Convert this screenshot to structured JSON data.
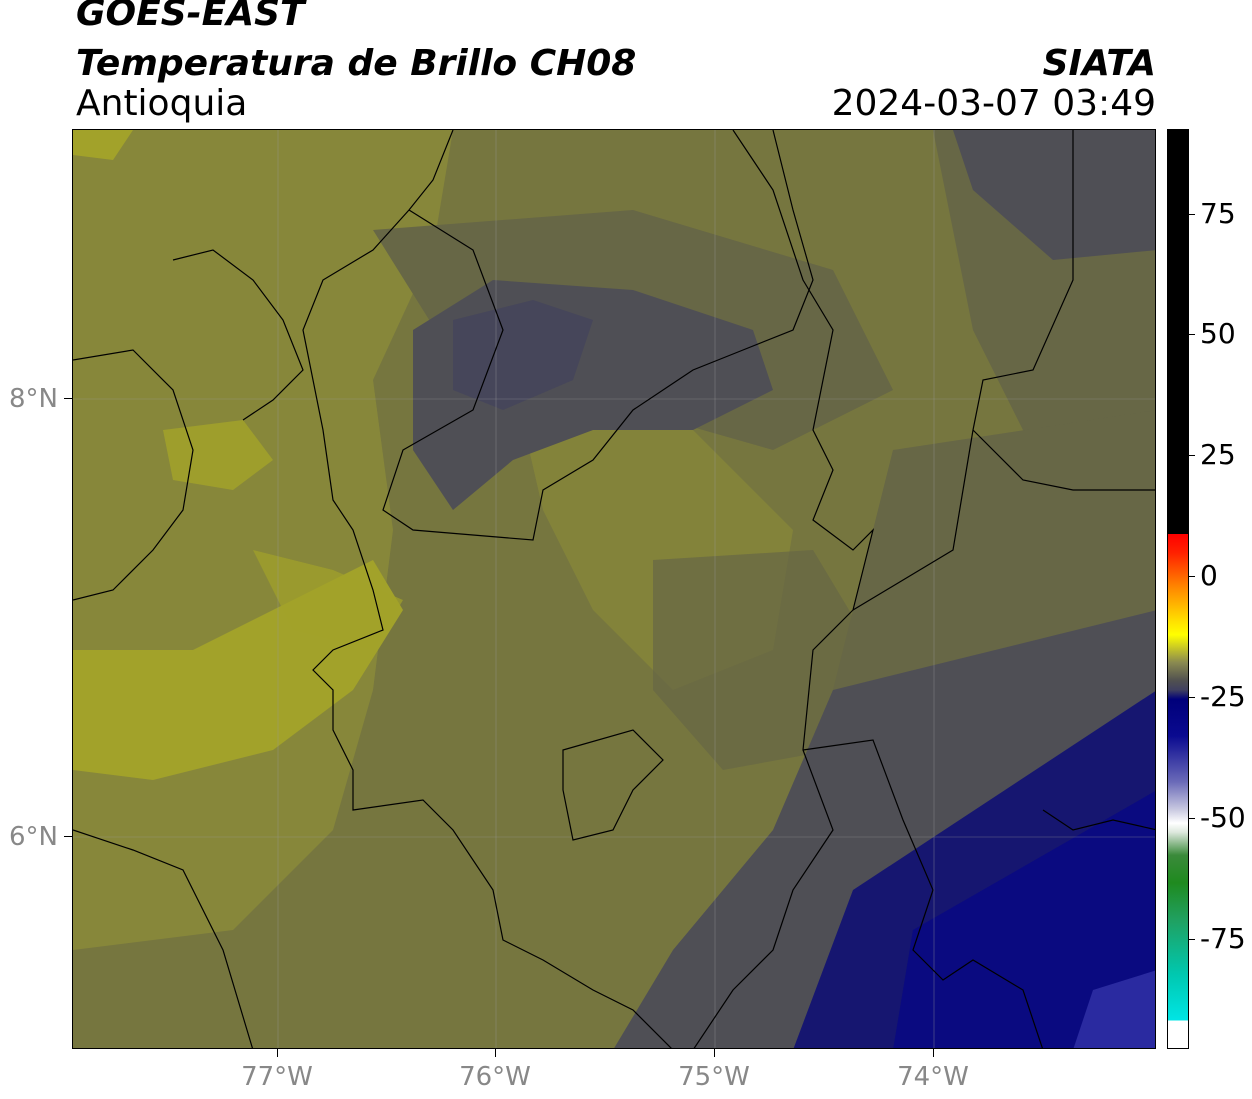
{
  "header": {
    "satellite": "GOES-EAST",
    "product": "Temperatura de Brillo CH08",
    "region": "Antioquia",
    "organization": "SIATA",
    "datetime": "2024-03-07 03:49"
  },
  "axes": {
    "lat_labels": [
      "8°N",
      "6°N"
    ],
    "lon_labels": [
      "77°W",
      "76°W",
      "75°W",
      "74°W"
    ]
  },
  "colorbar": {
    "ticks": [
      "75",
      "50",
      "25",
      "0",
      "-25",
      "-50",
      "-75"
    ],
    "range": [
      -95,
      92
    ],
    "colors": {
      "top": "#000000",
      "red": "#ff0000",
      "orange": "#ff8c00",
      "yellow": "#ffff00",
      "gray": "#505050",
      "navy": "#00007a",
      "white": "#ffffff",
      "green": "#1f8a1f",
      "cyan": "#00e5e5"
    }
  },
  "map": {
    "colors": {
      "olive_bright": "#a2a22a",
      "olive": "#87873a",
      "olive_mid": "#76763f",
      "olive_dark": "#676746",
      "gray_dark": "#4f4f55",
      "slate": "#46465a",
      "navy": "#0a0a80",
      "blue": "#2a2aa0"
    }
  }
}
